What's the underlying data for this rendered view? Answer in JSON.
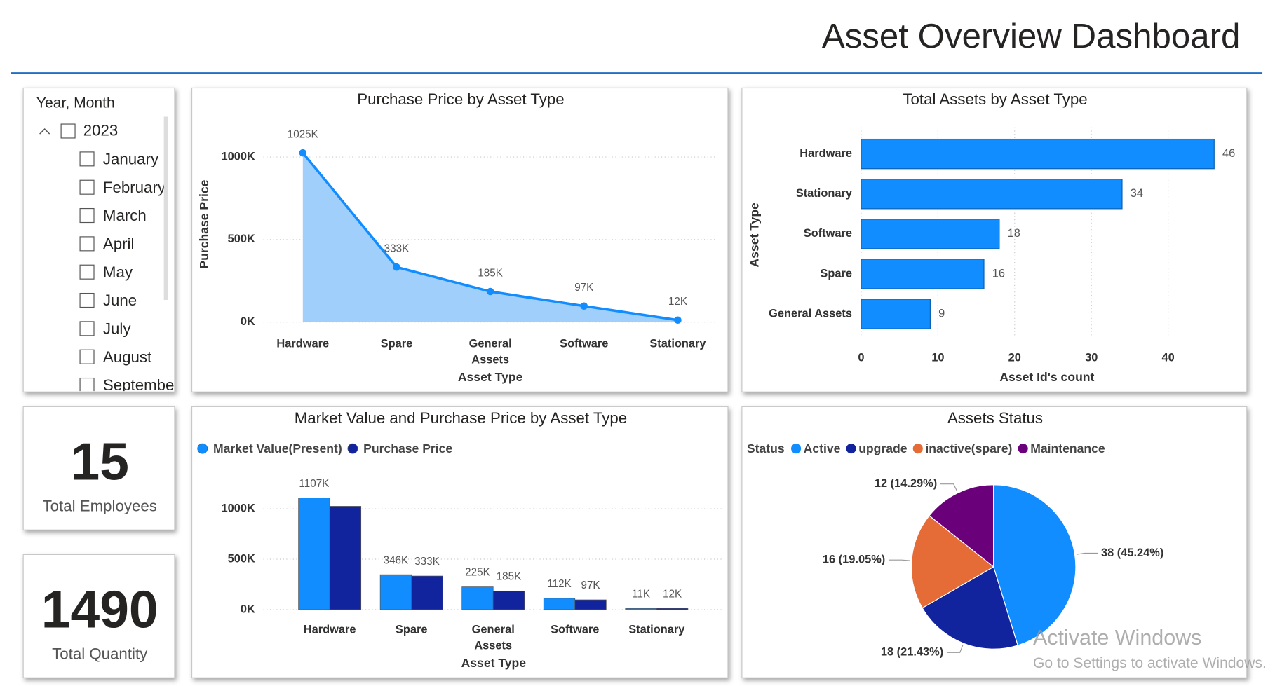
{
  "header": {
    "title": "Asset Overview Dashboard"
  },
  "slicer": {
    "title": "Year, Month",
    "year": "2023",
    "months": [
      "January",
      "February",
      "March",
      "April",
      "May",
      "June",
      "July",
      "August",
      "September"
    ]
  },
  "cards": [
    {
      "value": 15,
      "label": "Total Employees"
    },
    {
      "value": 1490,
      "label": "Total Quantity"
    }
  ],
  "chart_data": [
    {
      "type": "area",
      "title": "Purchase Price by Asset Type",
      "x_label": "Asset Type",
      "y_label": "Purchase Price",
      "categories": [
        "Hardware",
        "Spare",
        "General Assets",
        "Software",
        "Stationary"
      ],
      "values": [
        1025,
        333,
        185,
        97,
        12
      ],
      "value_labels": [
        "1025K",
        "333K",
        "185K",
        "97K",
        "12K"
      ],
      "color": "#118DFF",
      "fill": "#A0CFFB",
      "ylim": [
        0,
        1100
      ],
      "yticks": [
        {
          "value": 0,
          "label": "0K"
        },
        {
          "value": 500,
          "label": "500K"
        },
        {
          "value": 1000,
          "label": "1000K"
        }
      ],
      "grid": true
    },
    {
      "type": "hbar",
      "title": "Total Assets by Asset Type",
      "x_label": "Asset Id's count",
      "y_label": "Asset Type",
      "categories": [
        "Hardware",
        "Stationary",
        "Software",
        "Spare",
        "General Assets"
      ],
      "values": [
        46,
        34,
        18,
        16,
        9
      ],
      "color": "#118DFF",
      "xlim": [
        0,
        48
      ],
      "xticks": [
        0,
        10,
        20,
        30,
        40
      ],
      "grid": true
    },
    {
      "type": "grouped_bar",
      "title": "Market Value and Purchase Price by Asset Type",
      "x_label": "Asset Type",
      "categories": [
        "Hardware",
        "Spare",
        "General Assets",
        "Software",
        "Stationary"
      ],
      "series": [
        {
          "name": "Market Value(Present)",
          "color": "#118DFF",
          "values": [
            1107,
            346,
            225,
            112,
            11
          ],
          "value_labels": [
            "1107K",
            "346K",
            "225K",
            "112K",
            "11K"
          ]
        },
        {
          "name": "Purchase Price",
          "color": "#12239E",
          "values": [
            1025,
            333,
            185,
            97,
            12
          ],
          "value_labels": [
            null,
            "333K",
            "185K",
            "97K",
            "12K"
          ]
        }
      ],
      "ylim": [
        0,
        1100
      ],
      "yticks": [
        {
          "value": 0,
          "label": "0K"
        },
        {
          "value": 500,
          "label": "500K"
        },
        {
          "value": 1000,
          "label": "1000K"
        }
      ],
      "grid": true,
      "legend": "top-left"
    },
    {
      "type": "pie",
      "title": "Assets Status",
      "legend_title": "Status",
      "categories": [
        "Active",
        "upgrade",
        "inactive(spare)",
        "Maintenance"
      ],
      "values": [
        38,
        18,
        16,
        12
      ],
      "value_labels": [
        "38 (45.24%)",
        "18 (21.43%)",
        "16 (19.05%)",
        "12 (14.29%)"
      ],
      "colors": [
        "#118DFF",
        "#12239E",
        "#E66C37",
        "#6B007B"
      ],
      "legend": "top-left"
    }
  ],
  "watermark": {
    "title": "Activate Windows",
    "subtitle": "Go to Settings to activate Windows."
  }
}
